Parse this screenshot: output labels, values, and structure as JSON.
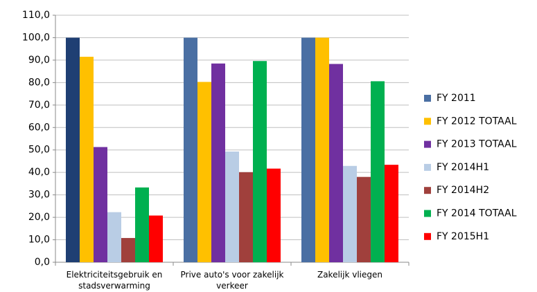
{
  "chart_data": {
    "type": "bar",
    "categories": [
      "Elektriciteitsgebruik en stadsverwarming",
      "Prive auto's voor zakelijk verkeer",
      "Zakelijk vliegen"
    ],
    "series": [
      {
        "name": "FY 2011",
        "color": "#4a6fa3",
        "point_colors": [
          "#1f3f73",
          "#4a6fa3",
          "#4a6fa3"
        ],
        "values": [
          100,
          100,
          100
        ]
      },
      {
        "name": "FY 2012 TOTAAL",
        "color": "#ffc000",
        "values": [
          91.5,
          80.3,
          100
        ]
      },
      {
        "name": "FY 2013 TOTAAL",
        "color": "#7030a0",
        "values": [
          51.3,
          88.5,
          88.3
        ]
      },
      {
        "name": "FY 2014H1",
        "color": "#b9cde5",
        "values": [
          22.3,
          49.3,
          42.9
        ]
      },
      {
        "name": "FY 2014H2",
        "color": "#a0403c",
        "values": [
          10.8,
          40.1,
          38.0
        ]
      },
      {
        "name": "FY 2014 TOTAAL",
        "color": "#00b050",
        "values": [
          33.3,
          89.6,
          80.6
        ]
      },
      {
        "name": "FY 2015H1",
        "color": "#ff0000",
        "values": [
          20.8,
          41.7,
          43.4
        ]
      }
    ],
    "ylim": [
      0,
      110
    ],
    "yticks": [
      {
        "value": 0,
        "label": "0,0"
      },
      {
        "value": 10,
        "label": "10,0"
      },
      {
        "value": 20,
        "label": "20,0"
      },
      {
        "value": 30,
        "label": "30,0"
      },
      {
        "value": 40,
        "label": "40,0"
      },
      {
        "value": 50,
        "label": "50,0"
      },
      {
        "value": 60,
        "label": "60,0"
      },
      {
        "value": 70,
        "label": "70,0"
      },
      {
        "value": 80,
        "label": "80,0"
      },
      {
        "value": 90,
        "label": "90,0"
      },
      {
        "value": 100,
        "label": "100,0"
      },
      {
        "value": 110,
        "label": "110,0"
      }
    ],
    "grid": true,
    "legend": "right"
  }
}
